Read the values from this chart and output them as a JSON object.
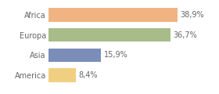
{
  "categories": [
    "Africa",
    "Europa",
    "Asia",
    "America"
  ],
  "values": [
    38.9,
    36.7,
    15.9,
    8.4
  ],
  "labels": [
    "38,9%",
    "36,7%",
    "15,9%",
    "8,4%"
  ],
  "colors": [
    "#f0b482",
    "#a8bc8a",
    "#7b8eba",
    "#f0d080"
  ],
  "background_color": "#ffffff",
  "xlim": [
    0,
    46
  ],
  "bar_height": 0.68,
  "label_fontsize": 7.0,
  "tick_fontsize": 7.0,
  "label_color": "#666666",
  "tick_color": "#666666"
}
